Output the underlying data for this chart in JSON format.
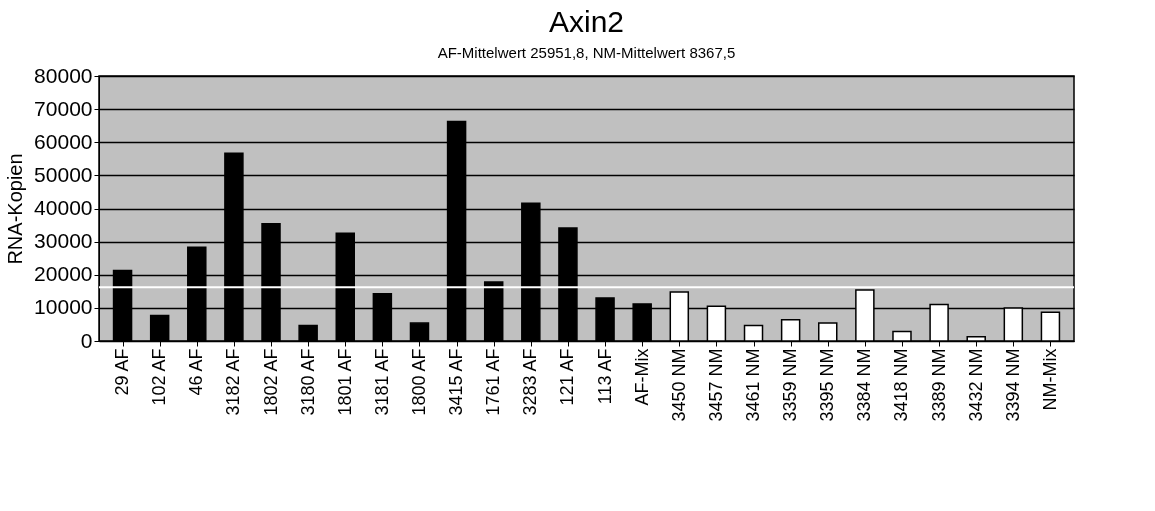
{
  "chart_data": {
    "type": "bar",
    "title": "Axin2",
    "subtitle": "AF-Mittelwert 25951,8, NM-Mittelwert 8367,5",
    "ylabel": "RNA-Kopien",
    "categories": [
      "29 AF",
      "102 AF",
      "46 AF",
      "3182 AF",
      "1802 AF",
      "3180 AF",
      "1801 AF",
      "3181 AF",
      "1800 AF",
      "3415 AF",
      "1761 AF",
      "3283 AF",
      "121 AF",
      "113 AF",
      "AF-Mix",
      "3450 NM",
      "3457 NM",
      "3461 NM",
      "3359 NM",
      "3395 NM",
      "3384 NM",
      "3418 NM",
      "3389 NM",
      "3432 NM",
      "3394 NM",
      "NM-Mix"
    ],
    "values": [
      21300,
      7700,
      28300,
      56700,
      35400,
      4700,
      32500,
      14300,
      5400,
      66300,
      17800,
      41600,
      34100,
      13000,
      11200,
      14800,
      10500,
      4700,
      6400,
      5400,
      15400,
      2900,
      11000,
      1300,
      10000,
      8700
    ],
    "colors": [
      "#000000",
      "#000000",
      "#000000",
      "#000000",
      "#000000",
      "#000000",
      "#000000",
      "#000000",
      "#000000",
      "#000000",
      "#000000",
      "#000000",
      "#000000",
      "#000000",
      "#000000",
      "#ffffff",
      "#ffffff",
      "#ffffff",
      "#ffffff",
      "#ffffff",
      "#ffffff",
      "#ffffff",
      "#ffffff",
      "#ffffff",
      "#ffffff",
      "#ffffff"
    ],
    "ylim": [
      0,
      80000
    ],
    "yticks": [
      0,
      10000,
      20000,
      30000,
      40000,
      50000,
      60000,
      70000,
      80000
    ],
    "grid": "y",
    "ref_lines": [
      {
        "axis": "y",
        "value": 16200,
        "color": "#ffffff"
      }
    ]
  }
}
